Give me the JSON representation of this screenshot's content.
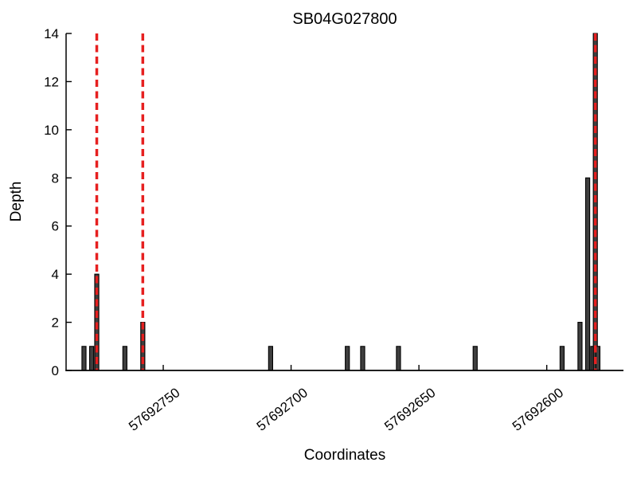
{
  "figure": {
    "background": "#ffffff"
  },
  "chart_data": {
    "type": "bar",
    "title": "SB04G027800",
    "xlabel": "Coordinates",
    "ylabel": "Depth",
    "x_axis": {
      "reversed": true,
      "lim": [
        57692788,
        57692570
      ],
      "ticks": [
        57692750,
        57692700,
        57692650,
        57692600
      ],
      "tick_labels": [
        "57692750",
        "57692700",
        "57692650",
        "57692600"
      ],
      "tick_rotation_deg": -38
    },
    "y_axis": {
      "lim": [
        0,
        14
      ],
      "ticks": [
        0,
        2,
        4,
        6,
        8,
        10,
        12,
        14
      ],
      "tick_labels": [
        "0",
        "2",
        "4",
        "6",
        "8",
        "10",
        "12",
        "14"
      ]
    },
    "bars": [
      {
        "coordinate": 57692781,
        "depth": 1
      },
      {
        "coordinate": 57692778,
        "depth": 1
      },
      {
        "coordinate": 57692776,
        "depth": 4
      },
      {
        "coordinate": 57692765,
        "depth": 1
      },
      {
        "coordinate": 57692758,
        "depth": 2
      },
      {
        "coordinate": 57692708,
        "depth": 1
      },
      {
        "coordinate": 57692678,
        "depth": 1
      },
      {
        "coordinate": 57692672,
        "depth": 1
      },
      {
        "coordinate": 57692658,
        "depth": 1
      },
      {
        "coordinate": 57692628,
        "depth": 1
      },
      {
        "coordinate": 57692594,
        "depth": 1
      },
      {
        "coordinate": 57692587,
        "depth": 2
      },
      {
        "coordinate": 57692584,
        "depth": 8
      },
      {
        "coordinate": 57692582,
        "depth": 1
      },
      {
        "coordinate": 57692581,
        "depth": 14
      },
      {
        "coordinate": 57692580,
        "depth": 1
      }
    ],
    "bar_width_units": 1.6,
    "vlines": {
      "positions": [
        57692776,
        57692758,
        57692581
      ],
      "style": "dashed"
    },
    "colors": {
      "bar_fill": "#3f3f3f",
      "bar_edge": "#000000",
      "vline": "#e62020",
      "axis": "#000000",
      "background": "#ffffff"
    },
    "grid": false,
    "legend": null
  }
}
